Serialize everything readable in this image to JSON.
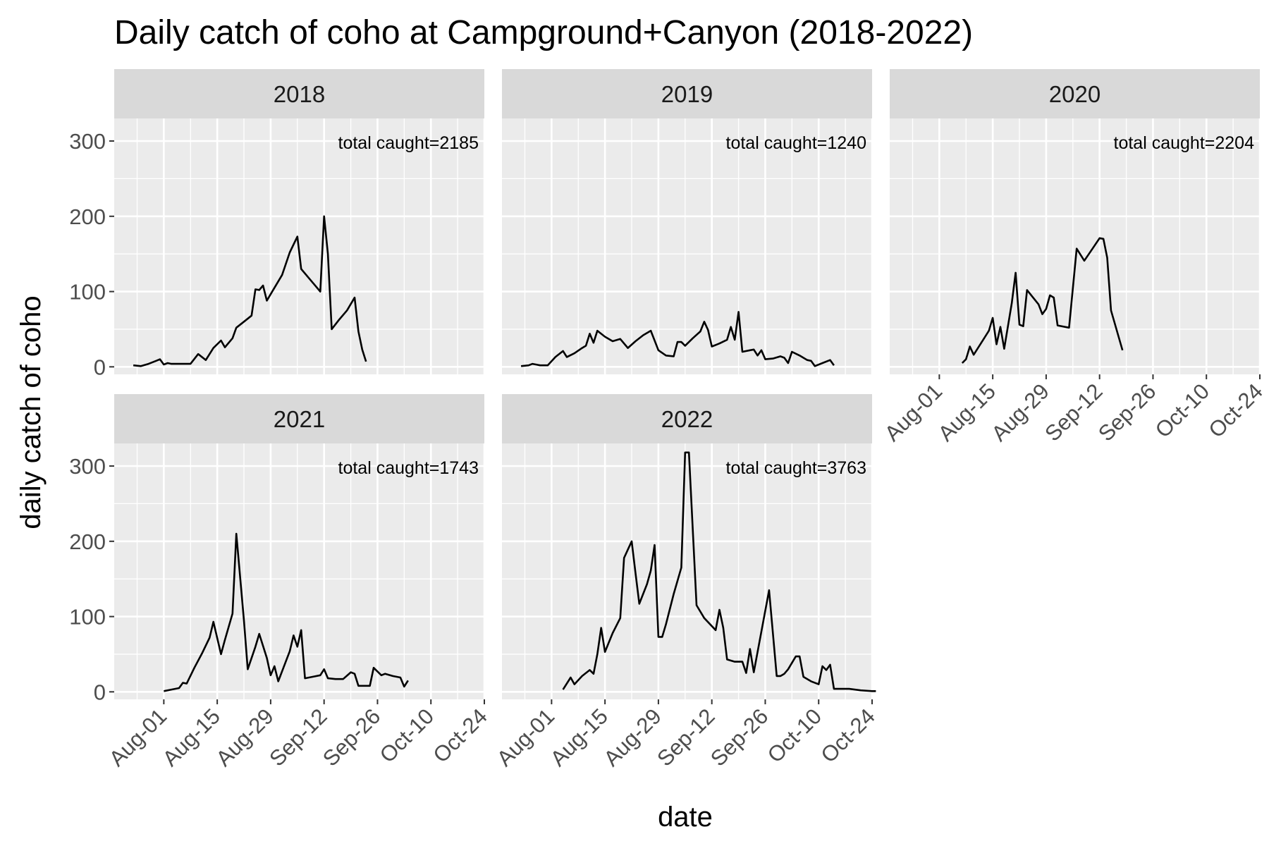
{
  "chart_data": {
    "type": "line",
    "title": "Daily catch of coho at Campground+Canyon (2018-2022)",
    "xlabel": "date",
    "ylabel": "daily catch of coho",
    "ylim": [
      -10,
      330
    ],
    "yticks": [
      0,
      100,
      200,
      300
    ],
    "xlim": [
      "Jul-19",
      "Oct-24"
    ],
    "xticks": [
      "Aug-01",
      "Aug-15",
      "Aug-29",
      "Sep-12",
      "Sep-26",
      "Oct-10",
      "Oct-24"
    ],
    "grid": true,
    "facets": [
      {
        "label": "2018",
        "annotation": "total caught=2185",
        "points": [
          [
            "Jul-24",
            2
          ],
          [
            "Jul-26",
            1
          ],
          [
            "Jul-28",
            4
          ],
          [
            "Jul-30",
            8
          ],
          [
            "Jul-31",
            10
          ],
          [
            "Aug-01",
            3
          ],
          [
            "Aug-02",
            5
          ],
          [
            "Aug-03",
            4
          ],
          [
            "Aug-06",
            4
          ],
          [
            "Aug-08",
            4
          ],
          [
            "Aug-10",
            17
          ],
          [
            "Aug-12",
            9
          ],
          [
            "Aug-14",
            25
          ],
          [
            "Aug-16",
            35
          ],
          [
            "Aug-17",
            26
          ],
          [
            "Aug-19",
            38
          ],
          [
            "Aug-20",
            52
          ],
          [
            "Aug-22",
            60
          ],
          [
            "Aug-24",
            68
          ],
          [
            "Aug-25",
            103
          ],
          [
            "Aug-26",
            102
          ],
          [
            "Aug-27",
            108
          ],
          [
            "Aug-28",
            88
          ],
          [
            "Aug-30",
            105
          ],
          [
            "Sep-01",
            122
          ],
          [
            "Sep-03",
            152
          ],
          [
            "Sep-05",
            173
          ],
          [
            "Sep-06",
            130
          ],
          [
            "Sep-08",
            118
          ],
          [
            "Sep-09",
            112
          ],
          [
            "Sep-10",
            106
          ],
          [
            "Sep-11",
            100
          ],
          [
            "Sep-12",
            200
          ],
          [
            "Sep-13",
            150
          ],
          [
            "Sep-14",
            50
          ],
          [
            "Sep-16",
            63
          ],
          [
            "Sep-18",
            75
          ],
          [
            "Sep-20",
            92
          ],
          [
            "Sep-21",
            47
          ],
          [
            "Sep-22",
            23
          ],
          [
            "Sep-23",
            7
          ]
        ]
      },
      {
        "label": "2019",
        "annotation": "total caught=1240",
        "points": [
          [
            "Jul-24",
            1
          ],
          [
            "Jul-26",
            2
          ],
          [
            "Jul-27",
            4
          ],
          [
            "Jul-29",
            2
          ],
          [
            "Jul-31",
            2
          ],
          [
            "Aug-02",
            13
          ],
          [
            "Aug-04",
            21
          ],
          [
            "Aug-05",
            13
          ],
          [
            "Aug-07",
            18
          ],
          [
            "Aug-09",
            25
          ],
          [
            "Aug-10",
            28
          ],
          [
            "Aug-11",
            44
          ],
          [
            "Aug-12",
            32
          ],
          [
            "Aug-13",
            48
          ],
          [
            "Aug-15",
            40
          ],
          [
            "Aug-17",
            34
          ],
          [
            "Aug-19",
            37
          ],
          [
            "Aug-21",
            25
          ],
          [
            "Aug-23",
            34
          ],
          [
            "Aug-25",
            42
          ],
          [
            "Aug-27",
            48
          ],
          [
            "Aug-29",
            22
          ],
          [
            "Aug-31",
            15
          ],
          [
            "Sep-02",
            14
          ],
          [
            "Sep-03",
            33
          ],
          [
            "Sep-04",
            33
          ],
          [
            "Sep-05",
            28
          ],
          [
            "Sep-07",
            38
          ],
          [
            "Sep-09",
            47
          ],
          [
            "Sep-10",
            60
          ],
          [
            "Sep-11",
            49
          ],
          [
            "Sep-12",
            27
          ],
          [
            "Sep-14",
            31
          ],
          [
            "Sep-16",
            36
          ],
          [
            "Sep-17",
            53
          ],
          [
            "Sep-18",
            36
          ],
          [
            "Sep-19",
            73
          ],
          [
            "Sep-20",
            20
          ],
          [
            "Sep-22",
            22
          ],
          [
            "Sep-23",
            23
          ],
          [
            "Sep-24",
            15
          ],
          [
            "Sep-25",
            22
          ],
          [
            "Sep-26",
            10
          ],
          [
            "Sep-28",
            11
          ],
          [
            "Sep-30",
            14
          ],
          [
            "Oct-01",
            12
          ],
          [
            "Oct-02",
            5
          ],
          [
            "Oct-03",
            20
          ],
          [
            "Oct-05",
            15
          ],
          [
            "Oct-07",
            9
          ],
          [
            "Oct-08",
            8
          ],
          [
            "Oct-09",
            1
          ],
          [
            "Oct-11",
            5
          ],
          [
            "Oct-13",
            9
          ],
          [
            "Oct-14",
            2
          ]
        ]
      },
      {
        "label": "2020",
        "annotation": "total caught=2204",
        "points": [
          [
            "Aug-07",
            5
          ],
          [
            "Aug-08",
            10
          ],
          [
            "Aug-09",
            27
          ],
          [
            "Aug-10",
            16
          ],
          [
            "Aug-12",
            32
          ],
          [
            "Aug-14",
            48
          ],
          [
            "Aug-15",
            65
          ],
          [
            "Aug-16",
            30
          ],
          [
            "Aug-17",
            53
          ],
          [
            "Aug-18",
            24
          ],
          [
            "Aug-20",
            85
          ],
          [
            "Aug-21",
            125
          ],
          [
            "Aug-22",
            56
          ],
          [
            "Aug-23",
            54
          ],
          [
            "Aug-24",
            102
          ],
          [
            "Aug-27",
            83
          ],
          [
            "Aug-28",
            70
          ],
          [
            "Aug-29",
            77
          ],
          [
            "Aug-30",
            95
          ],
          [
            "Aug-31",
            92
          ],
          [
            "Sep-01",
            55
          ],
          [
            "Sep-04",
            52
          ],
          [
            "Sep-06",
            157
          ],
          [
            "Sep-08",
            141
          ],
          [
            "Sep-10",
            156
          ],
          [
            "Sep-12",
            171
          ],
          [
            "Sep-13",
            170
          ],
          [
            "Sep-14",
            145
          ],
          [
            "Sep-15",
            75
          ],
          [
            "Sep-18",
            22
          ]
        ]
      },
      {
        "label": "2021",
        "annotation": "total caught=1743",
        "points": [
          [
            "Aug-01",
            1
          ],
          [
            "Aug-03",
            3
          ],
          [
            "Aug-05",
            5
          ],
          [
            "Aug-06",
            12
          ],
          [
            "Aug-07",
            11
          ],
          [
            "Aug-09",
            32
          ],
          [
            "Aug-11",
            51
          ],
          [
            "Aug-13",
            72
          ],
          [
            "Aug-14",
            93
          ],
          [
            "Aug-16",
            50
          ],
          [
            "Aug-17",
            69
          ],
          [
            "Aug-19",
            104
          ],
          [
            "Aug-20",
            210
          ],
          [
            "Aug-22",
            95
          ],
          [
            "Aug-23",
            30
          ],
          [
            "Aug-25",
            60
          ],
          [
            "Aug-26",
            77
          ],
          [
            "Aug-28",
            45
          ],
          [
            "Aug-29",
            22
          ],
          [
            "Aug-30",
            34
          ],
          [
            "Aug-31",
            14
          ],
          [
            "Sep-03",
            54
          ],
          [
            "Sep-04",
            75
          ],
          [
            "Sep-05",
            60
          ],
          [
            "Sep-06",
            82
          ],
          [
            "Sep-07",
            18
          ],
          [
            "Sep-09",
            20
          ],
          [
            "Sep-11",
            22
          ],
          [
            "Sep-12",
            30
          ],
          [
            "Sep-13",
            18
          ],
          [
            "Sep-15",
            17
          ],
          [
            "Sep-17",
            17
          ],
          [
            "Sep-19",
            26
          ],
          [
            "Sep-20",
            24
          ],
          [
            "Sep-21",
            8
          ],
          [
            "Sep-24",
            8
          ],
          [
            "Sep-25",
            32
          ],
          [
            "Sep-27",
            22
          ],
          [
            "Sep-28",
            24
          ],
          [
            "Sep-30",
            21
          ],
          [
            "Oct-02",
            19
          ],
          [
            "Oct-03",
            7
          ],
          [
            "Oct-04",
            15
          ]
        ]
      },
      {
        "label": "2022",
        "annotation": "total caught=3763",
        "points": [
          [
            "Aug-04",
            3
          ],
          [
            "Aug-06",
            19
          ],
          [
            "Aug-07",
            10
          ],
          [
            "Aug-09",
            21
          ],
          [
            "Aug-11",
            29
          ],
          [
            "Aug-12",
            24
          ],
          [
            "Aug-13",
            50
          ],
          [
            "Aug-14",
            85
          ],
          [
            "Aug-15",
            53
          ],
          [
            "Aug-17",
            78
          ],
          [
            "Aug-19",
            98
          ],
          [
            "Aug-20",
            178
          ],
          [
            "Aug-22",
            200
          ],
          [
            "Aug-23",
            158
          ],
          [
            "Aug-24",
            117
          ],
          [
            "Aug-26",
            143
          ],
          [
            "Aug-27",
            161
          ],
          [
            "Aug-28",
            195
          ],
          [
            "Aug-29",
            73
          ],
          [
            "Aug-30",
            73
          ],
          [
            "Aug-31",
            90
          ],
          [
            "Sep-02",
            130
          ],
          [
            "Sep-04",
            165
          ],
          [
            "Sep-05",
            318
          ],
          [
            "Sep-06",
            318
          ],
          [
            "Sep-08",
            115
          ],
          [
            "Sep-10",
            98
          ],
          [
            "Sep-13",
            82
          ],
          [
            "Sep-14",
            109
          ],
          [
            "Sep-15",
            85
          ],
          [
            "Sep-16",
            43
          ],
          [
            "Sep-18",
            40
          ],
          [
            "Sep-20",
            40
          ],
          [
            "Sep-21",
            25
          ],
          [
            "Sep-22",
            57
          ],
          [
            "Sep-23",
            26
          ],
          [
            "Sep-27",
            135
          ],
          [
            "Sep-29",
            21
          ],
          [
            "Sep-30",
            21
          ],
          [
            "Oct-01",
            24
          ],
          [
            "Oct-02",
            30
          ],
          [
            "Oct-04",
            47
          ],
          [
            "Oct-05",
            47
          ],
          [
            "Oct-06",
            20
          ],
          [
            "Oct-08",
            14
          ],
          [
            "Oct-10",
            10
          ],
          [
            "Oct-11",
            34
          ],
          [
            "Oct-12",
            29
          ],
          [
            "Oct-13",
            36
          ],
          [
            "Oct-14",
            4
          ],
          [
            "Oct-18",
            4
          ],
          [
            "Oct-21",
            2
          ],
          [
            "Oct-24",
            1
          ],
          [
            "Oct-25",
            1
          ]
        ]
      }
    ]
  }
}
